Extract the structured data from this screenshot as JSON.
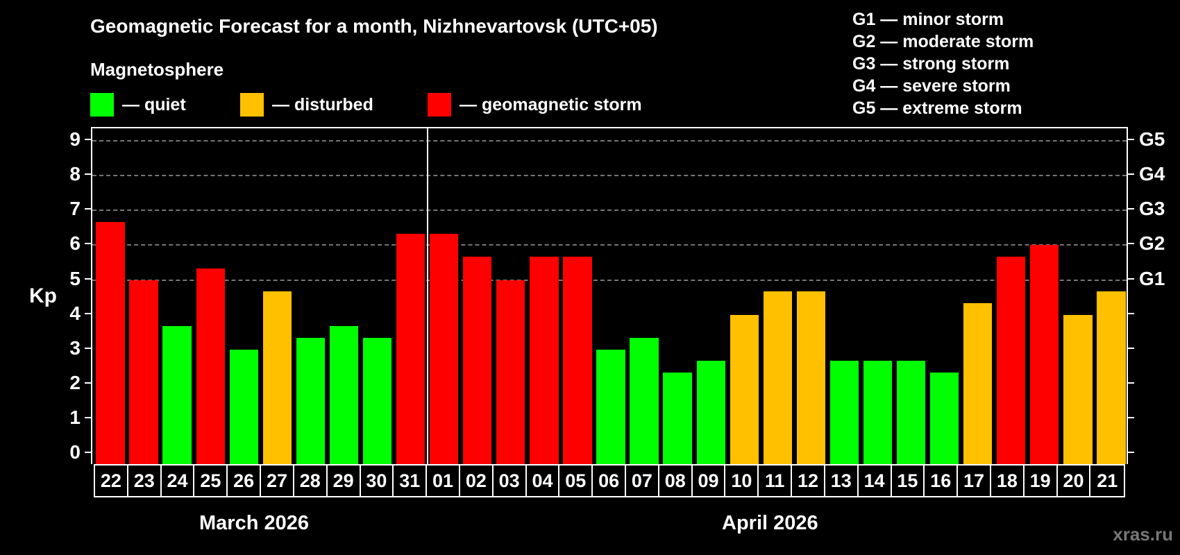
{
  "title": "Geomagnetic Forecast for a month, Nizhnevartovsk (UTC+05)",
  "magnetosphere_label": "Magnetosphere",
  "legend": [
    {
      "label": "— quiet",
      "color": "#00ff00"
    },
    {
      "label": "— disturbed",
      "color": "#ffc000"
    },
    {
      "label": "— geomagnetic storm",
      "color": "#ff0000"
    }
  ],
  "g_legend": [
    "G1 — minor storm",
    "G2 — moderate storm",
    "G3 — strong storm",
    "G4 — severe storm",
    "G5 — extreme storm"
  ],
  "y_axis": {
    "label": "Kp",
    "ticks": [
      "0",
      "1",
      "2",
      "3",
      "4",
      "5",
      "6",
      "7",
      "8",
      "9"
    ]
  },
  "right_axis": {
    "ticks": [
      {
        "kp": 5,
        "label": "G1"
      },
      {
        "kp": 6,
        "label": "G2"
      },
      {
        "kp": 7,
        "label": "G3"
      },
      {
        "kp": 8,
        "label": "G4"
      },
      {
        "kp": 9,
        "label": "G5"
      }
    ]
  },
  "months": [
    {
      "label": "March 2026"
    },
    {
      "label": "April 2026"
    }
  ],
  "watermark": "xras.ru",
  "colors": {
    "quiet": "#00ff00",
    "disturbed": "#ffc000",
    "storm": "#ff0000"
  },
  "chart_data": {
    "type": "bar",
    "title": "Geomagnetic Forecast for a month, Nizhnevartovsk (UTC+05)",
    "xlabel": "",
    "ylabel": "Kp",
    "ylim": [
      0,
      9
    ],
    "grid": true,
    "legend_position": "top",
    "categories": [
      "22",
      "23",
      "24",
      "25",
      "26",
      "27",
      "28",
      "29",
      "30",
      "31",
      "01",
      "02",
      "03",
      "04",
      "05",
      "06",
      "07",
      "08",
      "09",
      "10",
      "11",
      "12",
      "13",
      "14",
      "15",
      "16",
      "17",
      "18",
      "19",
      "20",
      "21"
    ],
    "months": [
      "March 2026 (22–31)",
      "April 2026 (01–21)"
    ],
    "values": [
      6.67,
      5.0,
      3.67,
      5.33,
      3.0,
      4.67,
      3.33,
      3.67,
      3.33,
      6.33,
      6.33,
      5.67,
      5.0,
      5.67,
      5.67,
      3.0,
      3.33,
      2.33,
      2.67,
      4.0,
      4.67,
      4.67,
      2.67,
      2.67,
      2.67,
      2.33,
      4.33,
      5.67,
      6.0,
      4.0,
      4.67
    ],
    "status": [
      "storm",
      "storm",
      "quiet",
      "storm",
      "quiet",
      "disturbed",
      "quiet",
      "quiet",
      "quiet",
      "storm",
      "storm",
      "storm",
      "storm",
      "storm",
      "storm",
      "quiet",
      "quiet",
      "quiet",
      "quiet",
      "disturbed",
      "disturbed",
      "disturbed",
      "quiet",
      "quiet",
      "quiet",
      "quiet",
      "disturbed",
      "storm",
      "storm",
      "disturbed",
      "disturbed"
    ],
    "right_axis_labels": {
      "5": "G1",
      "6": "G2",
      "7": "G3",
      "8": "G4",
      "9": "G5"
    }
  }
}
